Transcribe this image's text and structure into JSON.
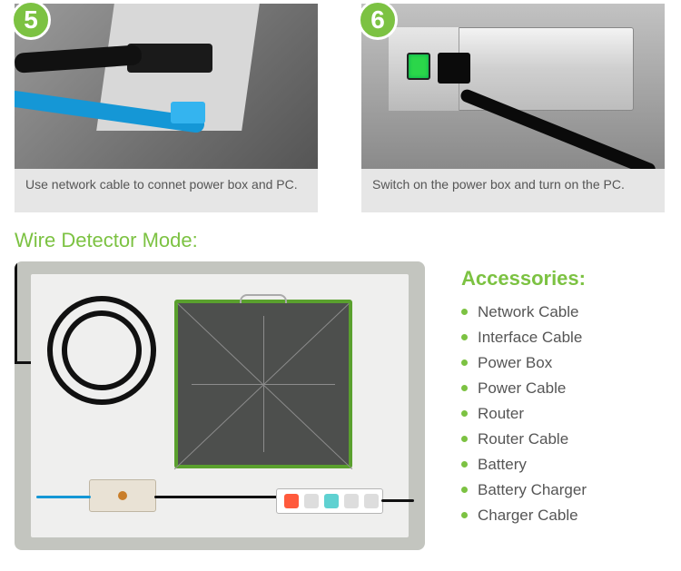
{
  "colors": {
    "accent": "#7cc242",
    "caption_bg": "#e6e6e6",
    "caption_text": "#555555",
    "body_text": "#555555",
    "panel_bg": "#c3c5bf",
    "panel_inner": "#efefee",
    "detector_border": "#5aa02e",
    "cable_black": "#111111",
    "cable_blue": "#1597d6"
  },
  "steps": [
    {
      "number": "5",
      "caption": "Use network cable to connet power box and PC."
    },
    {
      "number": "6",
      "caption": "Switch on the power box and turn on the PC."
    }
  ],
  "section_title": "Wire Detector Mode:",
  "accessories": {
    "title": "Accessories:",
    "items": [
      "Network Cable",
      "Interface Cable",
      "Power Box",
      "Power Cable",
      "Router",
      "Router Cable",
      "Battery",
      "Battery Charger",
      "Charger Cable"
    ]
  }
}
